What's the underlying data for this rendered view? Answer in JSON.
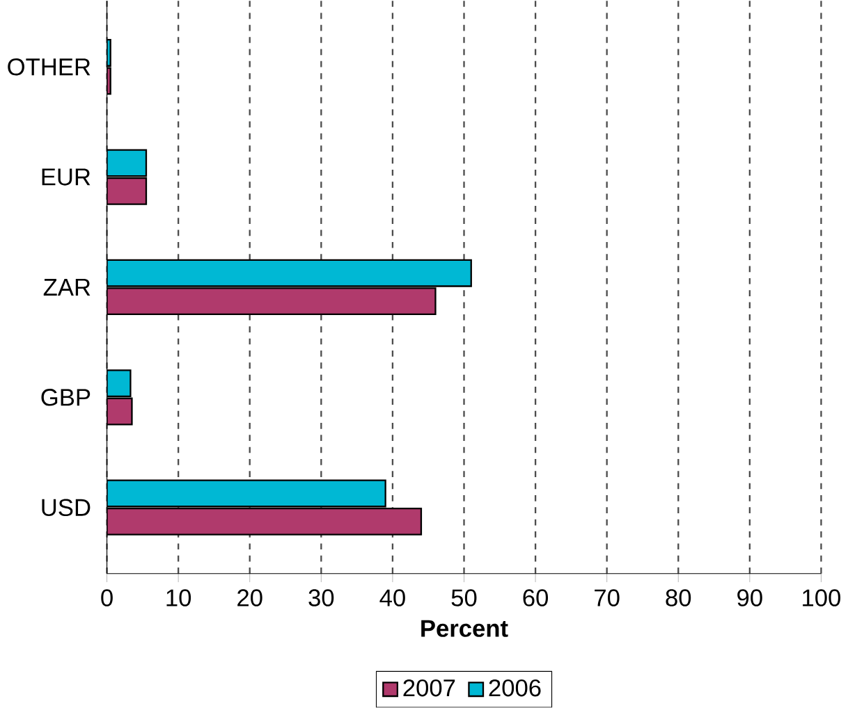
{
  "chart_data": {
    "type": "bar",
    "orientation": "horizontal",
    "xlabel": "Percent",
    "categories": [
      "OTHER",
      "EUR",
      "ZAR",
      "GBP",
      "USD"
    ],
    "series": [
      {
        "name": "2007",
        "color": "#b03a6c",
        "values": [
          0.5,
          5.5,
          46,
          3.5,
          44
        ]
      },
      {
        "name": "2006",
        "color": "#00b8d4",
        "values": [
          0.5,
          5.5,
          51,
          3.3,
          39
        ]
      }
    ],
    "xlim": [
      0,
      100
    ],
    "xticks": [
      0,
      10,
      20,
      30,
      40,
      50,
      60,
      70,
      80,
      90,
      100
    ],
    "grid": "x",
    "legend": "bottom"
  }
}
